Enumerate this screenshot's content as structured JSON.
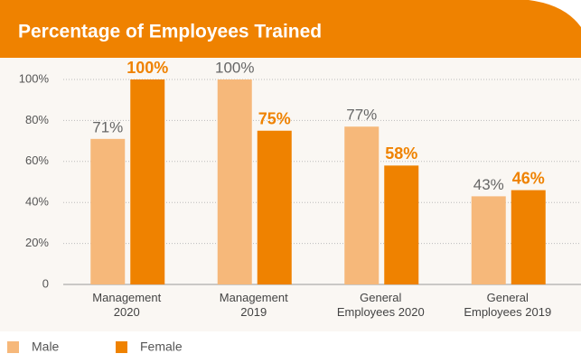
{
  "chart_data": {
    "type": "bar",
    "title": "Percentage of Employees Trained",
    "categories": [
      "Management 2020",
      "Management 2019",
      "General Employees 2020",
      "General Employees 2019"
    ],
    "series": [
      {
        "name": "Male",
        "color": "#f6b87a",
        "values": [
          71,
          100,
          77,
          43
        ],
        "value_labels": [
          "71%",
          "100%",
          "77%",
          "43%"
        ]
      },
      {
        "name": "Female",
        "color": "#ef8200",
        "values": [
          100,
          75,
          58,
          46
        ],
        "value_labels": [
          "100%",
          "75%",
          "58%",
          "46%"
        ]
      }
    ],
    "ylim": [
      0,
      100
    ],
    "yticks": [
      0,
      {
        "value": 20,
        "label": "20%"
      },
      {
        "value": 40,
        "label": "40%"
      },
      {
        "value": 60,
        "label": "60%"
      },
      {
        "value": 80,
        "label": "80%"
      },
      {
        "value": 100,
        "label": "100%"
      }
    ],
    "grid": true,
    "legend": "bottom"
  }
}
